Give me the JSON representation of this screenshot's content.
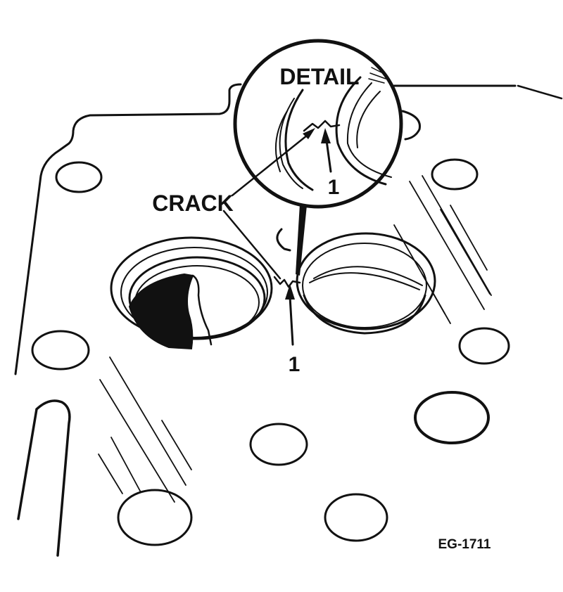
{
  "figure": {
    "detail_label": "DETAIL",
    "crack_label": "CRACK",
    "callout_detail": "1",
    "callout_main": "1",
    "figure_code": "EG-1711"
  },
  "colors": {
    "ink": "#111111",
    "paper": "#ffffff"
  }
}
